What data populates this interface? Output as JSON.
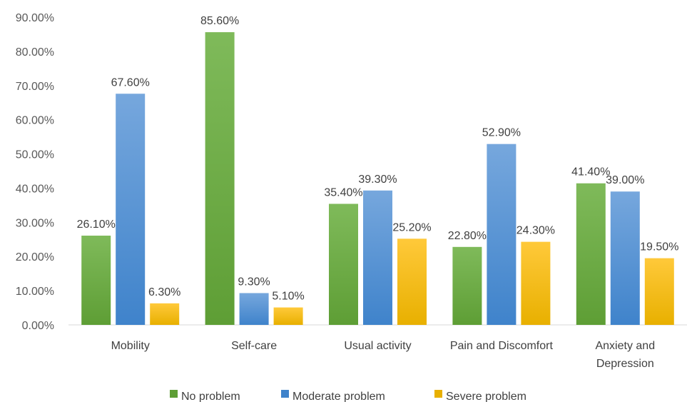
{
  "chart_data": {
    "type": "bar",
    "categories": [
      "Mobility",
      "Self-care",
      "Usual activity",
      "Pain and Discomfort",
      "Anxiety and Depression"
    ],
    "category_lines": [
      [
        "Mobility"
      ],
      [
        "Self-care"
      ],
      [
        "Usual activity"
      ],
      [
        "Pain and Discomfort"
      ],
      [
        "Anxiety and",
        "Depression"
      ]
    ],
    "series": [
      {
        "name": "No problem",
        "values": [
          26.1,
          85.6,
          35.4,
          22.8,
          41.4
        ],
        "labels": [
          "26.10%",
          "85.60%",
          "35.40%",
          "22.80%",
          "41.40%"
        ],
        "color_top": "#7fba5a",
        "color_bottom": "#5e9e35"
      },
      {
        "name": "Moderate problem",
        "values": [
          67.6,
          9.3,
          39.3,
          52.9,
          39.0
        ],
        "labels": [
          "67.60%",
          "9.30%",
          "39.30%",
          "52.90%",
          "39.00%"
        ],
        "color_top": "#76a7dd",
        "color_bottom": "#3f83cb"
      },
      {
        "name": "Severe problem",
        "values": [
          6.3,
          5.1,
          25.2,
          24.3,
          19.5
        ],
        "labels": [
          "6.30%",
          "5.10%",
          "25.20%",
          "24.30%",
          "19.50%"
        ],
        "color_top": "#ffc93a",
        "color_bottom": "#e8b000"
      }
    ],
    "y_ticks": [
      "0.00%",
      "10.00%",
      "20.00%",
      "30.00%",
      "40.00%",
      "50.00%",
      "60.00%",
      "70.00%",
      "80.00%",
      "90.00%"
    ],
    "ylim": [
      0,
      90
    ],
    "grid": false,
    "legend": "bottom"
  }
}
